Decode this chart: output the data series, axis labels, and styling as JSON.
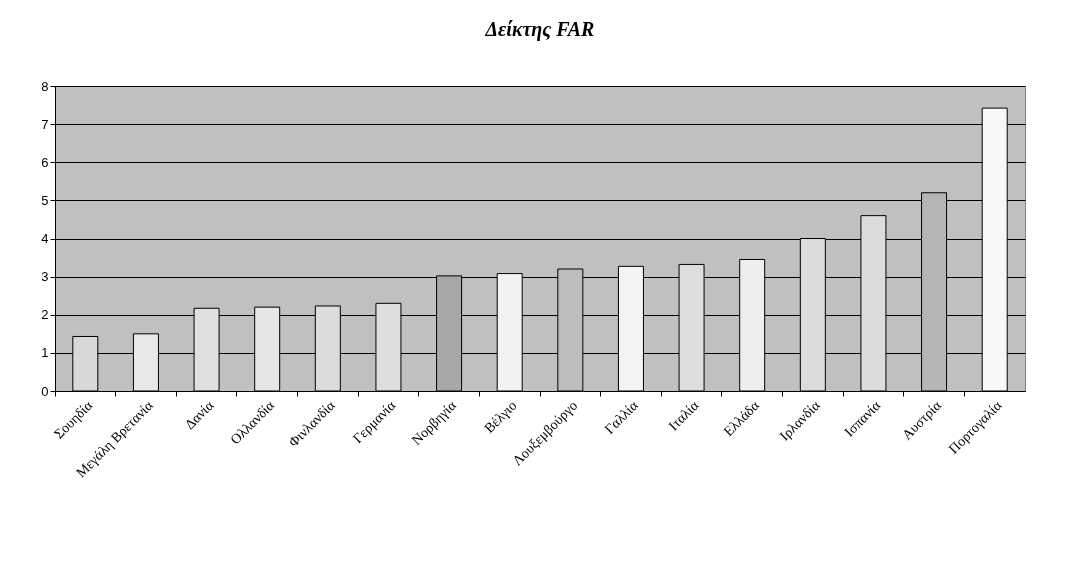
{
  "chart_data": {
    "type": "bar",
    "title": "Δείκτης FAR",
    "categories": [
      "Σουηδία",
      "Μεγάλη Βρετανία",
      "Δανία",
      "Ολλανδία",
      "Φινλανδία",
      "Γερμανία",
      "Νορβηγία",
      "Βέλγιο",
      "Λουξεμβούργο",
      "Γαλλία",
      "Ιταλία",
      "Ελλάδα",
      "Ιρλανδία",
      "Ισπανία",
      "Αυστρία",
      "Πορτογαλία"
    ],
    "values": [
      1.43,
      1.5,
      2.17,
      2.2,
      2.23,
      2.3,
      3.02,
      3.08,
      3.2,
      3.27,
      3.32,
      3.45,
      4.0,
      4.6,
      5.2,
      7.42
    ],
    "colors": [
      "#d8d8d8",
      "#e8e8e8",
      "#e0e0e0",
      "#e6e6e6",
      "#dcdcdc",
      "#dedede",
      "#a8a8a8",
      "#f2f2f2",
      "#bdbdbd",
      "#f4f4f4",
      "#dddddd",
      "#eeeeee",
      "#dcdcdc",
      "#dcdcdc",
      "#b5b5b5",
      "#f8f8f8"
    ],
    "ylim": [
      0,
      8
    ],
    "yticks": [
      0,
      1,
      2,
      3,
      4,
      5,
      6,
      7,
      8
    ],
    "grid": "y"
  }
}
